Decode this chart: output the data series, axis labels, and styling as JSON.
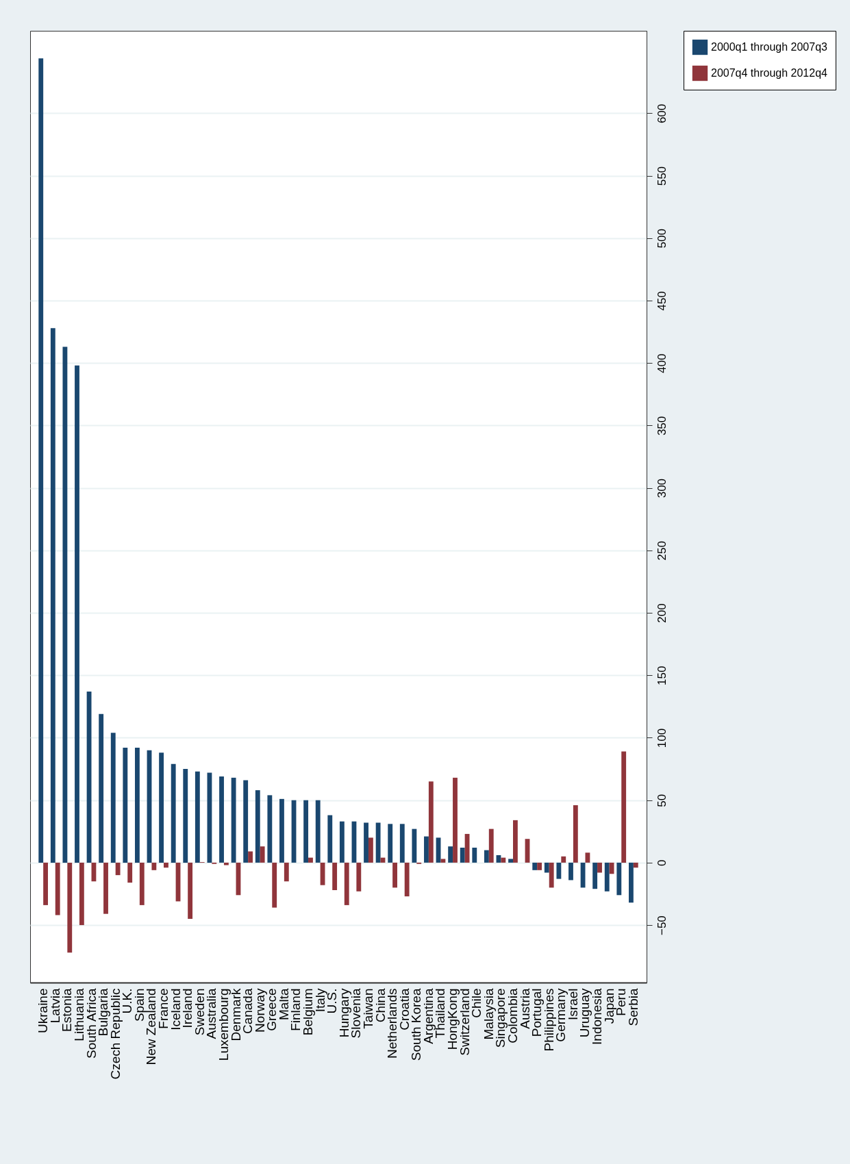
{
  "chart_data": {
    "type": "bar",
    "categories": [
      "Ukraine",
      "Latvia",
      "Estonia",
      "Lithuania",
      "South Africa",
      "Bulgaria",
      "Czech Republic",
      "U.K.",
      "Spain",
      "New Zealand",
      "France",
      "Iceland",
      "Ireland",
      "Sweden",
      "Australia",
      "Luxembourg",
      "Denmark",
      "Canada",
      "Norway",
      "Greece",
      "Malta",
      "Finland",
      "Belgium",
      "Italy",
      "U.S.",
      "Hungary",
      "Slovenia",
      "Taiwan",
      "China",
      "Netherlands",
      "Croatia",
      "South Korea",
      "Argentina",
      "Thailand",
      "HongKong",
      "Switzerland",
      "Chile",
      "Malaysia",
      "Singapore",
      "Colombia",
      "Austria",
      "Portugal",
      "Philippines",
      "Germany",
      "Israel",
      "Uruguay",
      "Indonesia",
      "Japan",
      "Peru",
      "Serbia"
    ],
    "series": [
      {
        "name": "2000q1 through 2007q3",
        "color": "#1a476f",
        "values": [
          644,
          428,
          413,
          398,
          137,
          119,
          104,
          92,
          92,
          90,
          88,
          79,
          75,
          73,
          72,
          69,
          68,
          66,
          58,
          54,
          51,
          50,
          50,
          50,
          38,
          33,
          33,
          32,
          32,
          31,
          31,
          27,
          21,
          20,
          13,
          12,
          12,
          10,
          6,
          3,
          0,
          -6,
          -8,
          -13,
          -14,
          -20,
          -21,
          -23,
          -26,
          -32
        ]
      },
      {
        "name": "2007q4 through 2012q4",
        "color": "#90353b",
        "values": [
          -34,
          -42,
          -72,
          -50,
          -15,
          -41,
          -10,
          -16,
          -34,
          -6,
          -4,
          -31,
          -45,
          0.5,
          -1,
          -2,
          -26,
          9,
          13,
          -36,
          -15,
          0,
          4,
          -18,
          -22,
          -34,
          -23,
          20,
          4,
          -20,
          -27,
          -1,
          65,
          3,
          68,
          23,
          0,
          27,
          4,
          34,
          19,
          -6,
          -20,
          5,
          46,
          8,
          -8,
          -9,
          89,
          -4
        ]
      }
    ],
    "ylim": [
      -96,
      666
    ],
    "yticks": [
      -50,
      0,
      50,
      100,
      150,
      200,
      250,
      300,
      350,
      400,
      450,
      500,
      550,
      600
    ],
    "grid": "y",
    "legend": "right"
  }
}
